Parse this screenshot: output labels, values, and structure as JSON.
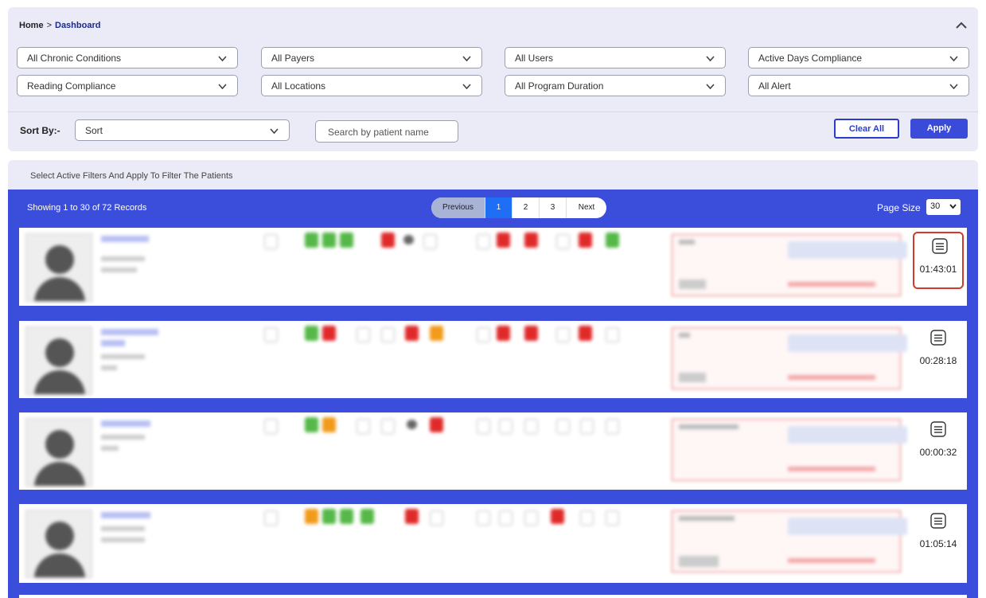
{
  "breadcrumb": {
    "home": "Home",
    "separator": ">",
    "current": "Dashboard"
  },
  "filters": {
    "row1": [
      "All Chronic Conditions",
      "All Payers",
      "All Users",
      "Active Days Compliance"
    ],
    "row2": [
      "Reading Compliance",
      "All Locations",
      "All Program Duration",
      "All Alert"
    ]
  },
  "sort": {
    "label": "Sort By:-",
    "value": "Sort"
  },
  "search": {
    "placeholder": "Search by patient name"
  },
  "buttons": {
    "clear_all": "Clear All",
    "apply": "Apply"
  },
  "hint": "Select Active Filters And Apply To Filter The Patients",
  "records": "Showing 1 to 30 of 72 Records",
  "pagination": {
    "previous": "Previous",
    "pages": [
      "1",
      "2",
      "3"
    ],
    "active": "1",
    "next": "Next"
  },
  "page_size": {
    "label": "Page Size",
    "value": "30"
  },
  "patients": [
    {
      "timer": "01:43:01",
      "highlighted": true
    },
    {
      "timer": "00:28:18",
      "highlighted": false
    },
    {
      "timer": "00:00:32",
      "highlighted": false
    },
    {
      "timer": "01:05:14",
      "highlighted": false
    }
  ],
  "colors": {
    "accent": "#3b4ddb",
    "panel": "#ebebf8",
    "alert_red": "#e02a2a",
    "ok_green": "#55b848",
    "warn_orange": "#f29a1a"
  }
}
